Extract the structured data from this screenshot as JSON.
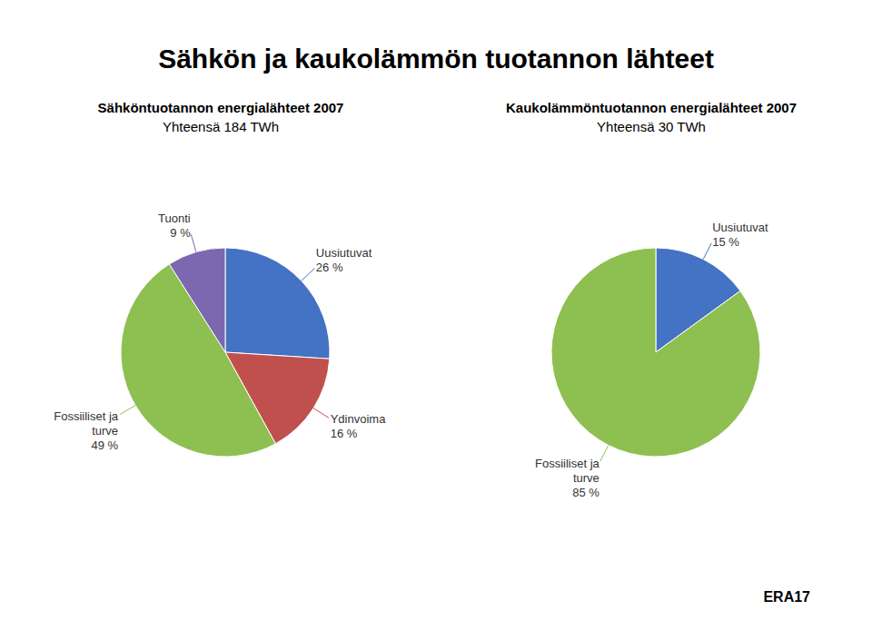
{
  "title": "Sähkön ja kaukolämmön tuotannon lähteet",
  "annotations": [
    "ERA17"
  ],
  "chart_data": [
    {
      "type": "pie",
      "title": "Sähköntuotannon energialähteet 2007",
      "subtitle": "Yhteensä 184 TWh",
      "categories": [
        "Uusiutuvat",
        "Ydinvoima",
        "Fossiiliset ja\nturve",
        "Tuonti"
      ],
      "values": [
        26,
        16,
        49,
        9
      ],
      "value_labels": [
        "26 %",
        "16 %",
        "49 %",
        "9 %"
      ],
      "data_labels": true,
      "colors": [
        "#4472C4",
        "#C0504D",
        "#8DC050",
        "#7B68B0"
      ]
    },
    {
      "type": "pie",
      "title": "Kaukolämmöntuotannon energialähteet 2007",
      "subtitle": "Yhteensä 30 TWh",
      "categories": [
        "Uusiutuvat",
        "Fossiiliset ja\nturve"
      ],
      "values": [
        15,
        85
      ],
      "value_labels": [
        "15 %",
        "85 %"
      ],
      "data_labels": true,
      "colors": [
        "#4472C4",
        "#8DC050"
      ]
    }
  ]
}
